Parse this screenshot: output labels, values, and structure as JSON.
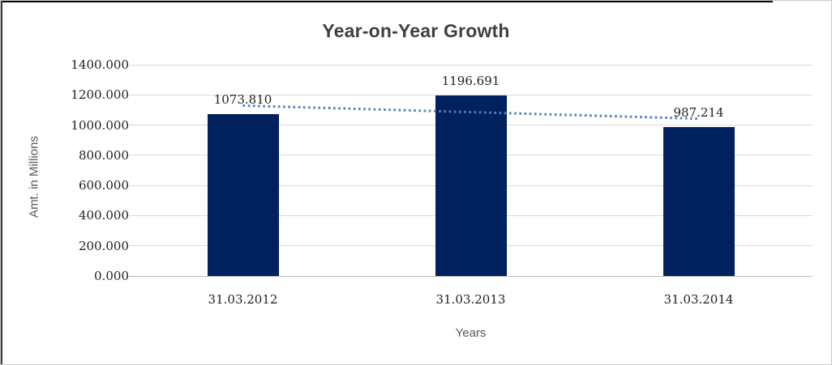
{
  "chart_data": {
    "type": "bar",
    "title": "Year-on-Year Growth",
    "categories": [
      "31.03.2012",
      "31.03.2013",
      "31.03.2014"
    ],
    "values": [
      1073.81,
      1196.691,
      987.214
    ],
    "data_labels": [
      "1073.810",
      "1196.691",
      "987.214"
    ],
    "xlabel": "Years",
    "ylabel": "Amt. in Millions",
    "ylim": [
      0,
      1400
    ],
    "ytick_step": 200,
    "ytick_labels": [
      "0.000",
      "200.000",
      "400.000",
      "600.000",
      "800.000",
      "1000.000",
      "1200.000",
      "1400.000"
    ],
    "grid": true,
    "legend": "none",
    "bar_color": "#00215e",
    "gridline_color": "#d9d9d9",
    "trendline": {
      "type": "linear",
      "style": "dotted",
      "color": "#4f81bd"
    }
  }
}
